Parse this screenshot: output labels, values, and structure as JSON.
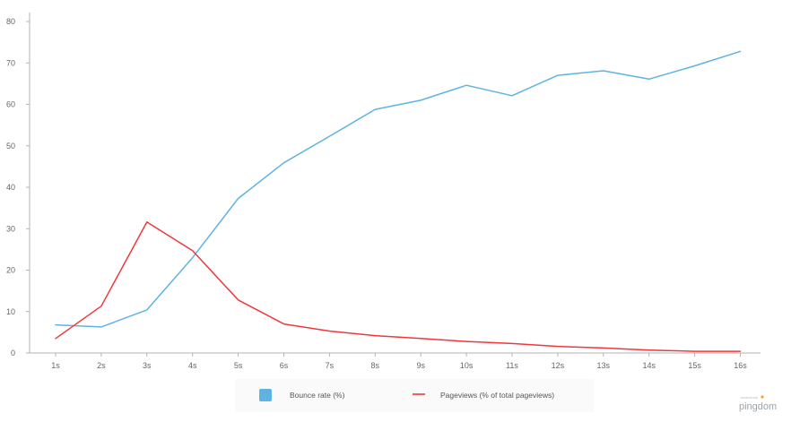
{
  "chart_data": {
    "type": "line",
    "categories": [
      "1s",
      "2s",
      "3s",
      "4s",
      "5s",
      "6s",
      "7s",
      "8s",
      "9s",
      "10s",
      "11s",
      "12s",
      "13s",
      "14s",
      "15s",
      "16s"
    ],
    "series": [
      {
        "name": "Bounce rate  (%)",
        "color": "#5fb3e0",
        "legend_marker": "square",
        "values": [
          6.8,
          6.3,
          10.4,
          23.0,
          37.3,
          45.9,
          52.3,
          58.8,
          61.0,
          64.6,
          62.1,
          67.0,
          68.1,
          66.1,
          69.3,
          72.8
        ]
      },
      {
        "name": "Pageviews (% of total pageviews)",
        "color": "#f0383c",
        "legend_marker": "line",
        "values": [
          3.5,
          11.3,
          31.6,
          24.7,
          12.8,
          7.0,
          5.3,
          4.2,
          3.5,
          2.8,
          2.3,
          1.6,
          1.2,
          0.7,
          0.4,
          0.4
        ]
      }
    ],
    "yticks": [
      "0",
      "10",
      "20",
      "30",
      "40",
      "50",
      "60",
      "70",
      "80"
    ],
    "ylim": [
      0,
      80
    ],
    "grid": false,
    "legend_position": "bottom-center",
    "title": "",
    "xlabel": "",
    "ylabel": ""
  },
  "branding": {
    "logo_text": "pingdom",
    "logo_subtext": "solarwinds",
    "logo_accent": "#f5a623"
  }
}
